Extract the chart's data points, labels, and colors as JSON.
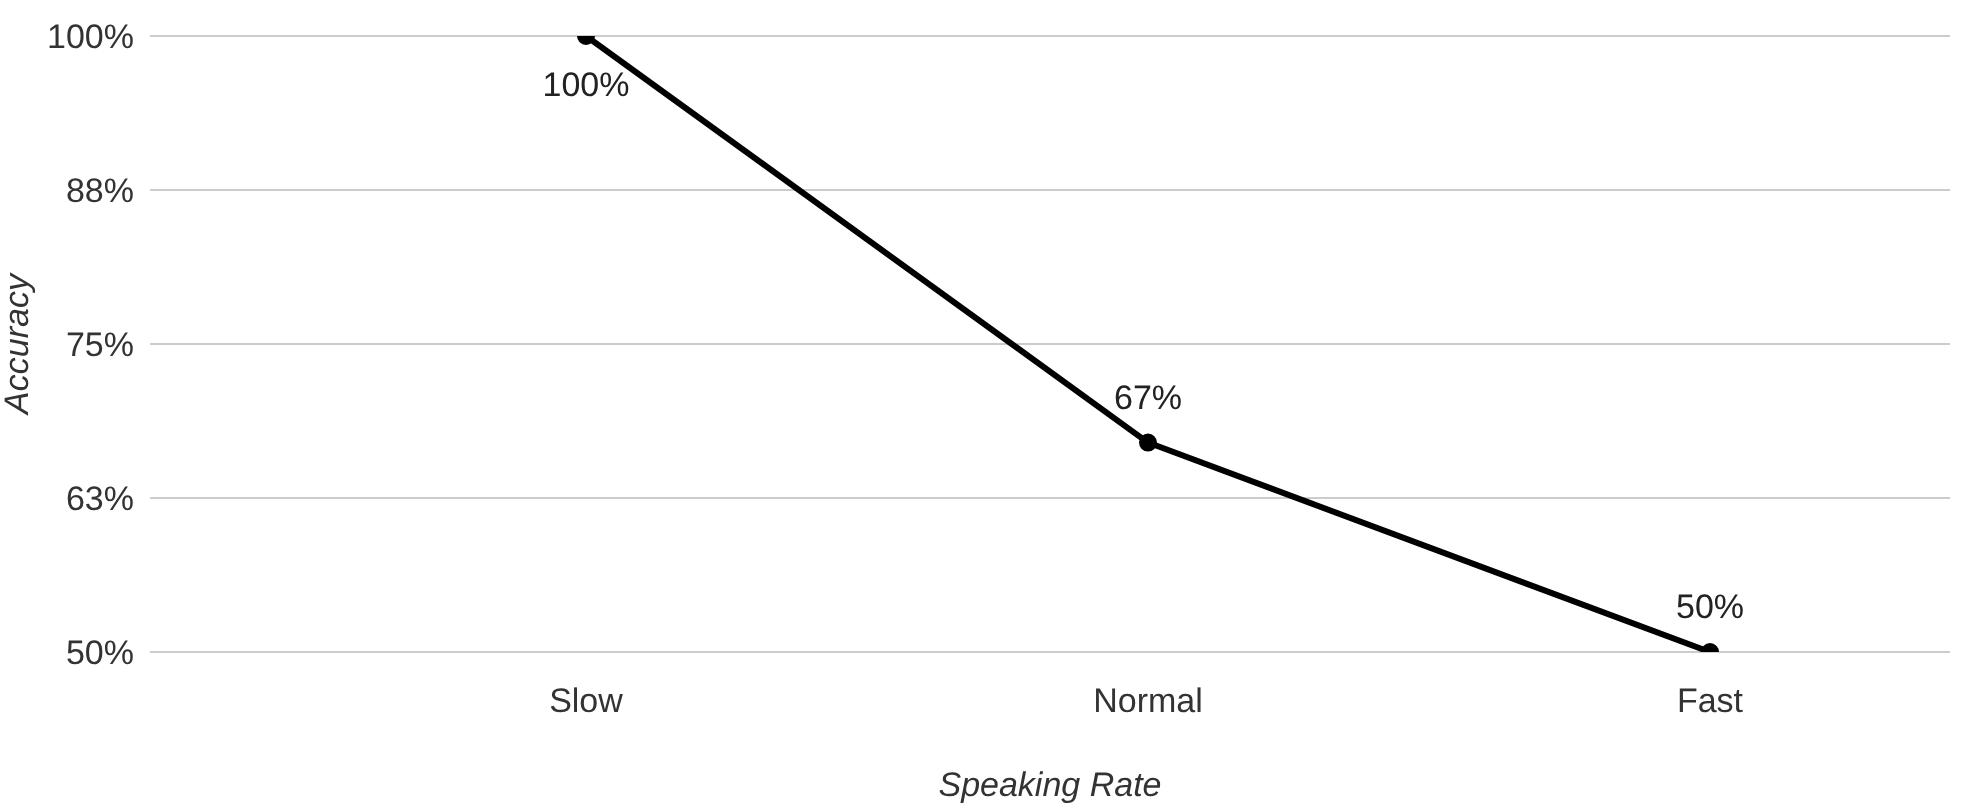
{
  "chart_data": {
    "type": "line",
    "xlabel": "Speaking Rate",
    "ylabel": "Accuracy",
    "categories": [
      "Slow",
      "Normal",
      "Fast"
    ],
    "series": [
      {
        "color": "#000000",
        "values": [
          100,
          67,
          50
        ],
        "value_labels": [
          "100%",
          "67%",
          "50%"
        ]
      }
    ],
    "ylim": [
      50,
      100
    ],
    "yticks": [
      {
        "value": 50,
        "label": "50%"
      },
      {
        "value": 62.5,
        "label": "63%"
      },
      {
        "value": 75,
        "label": "75%"
      },
      {
        "value": 87.5,
        "label": "88%"
      },
      {
        "value": 100,
        "label": "100%"
      }
    ],
    "grid": "y",
    "marker": "circle",
    "line_style": "solid"
  }
}
